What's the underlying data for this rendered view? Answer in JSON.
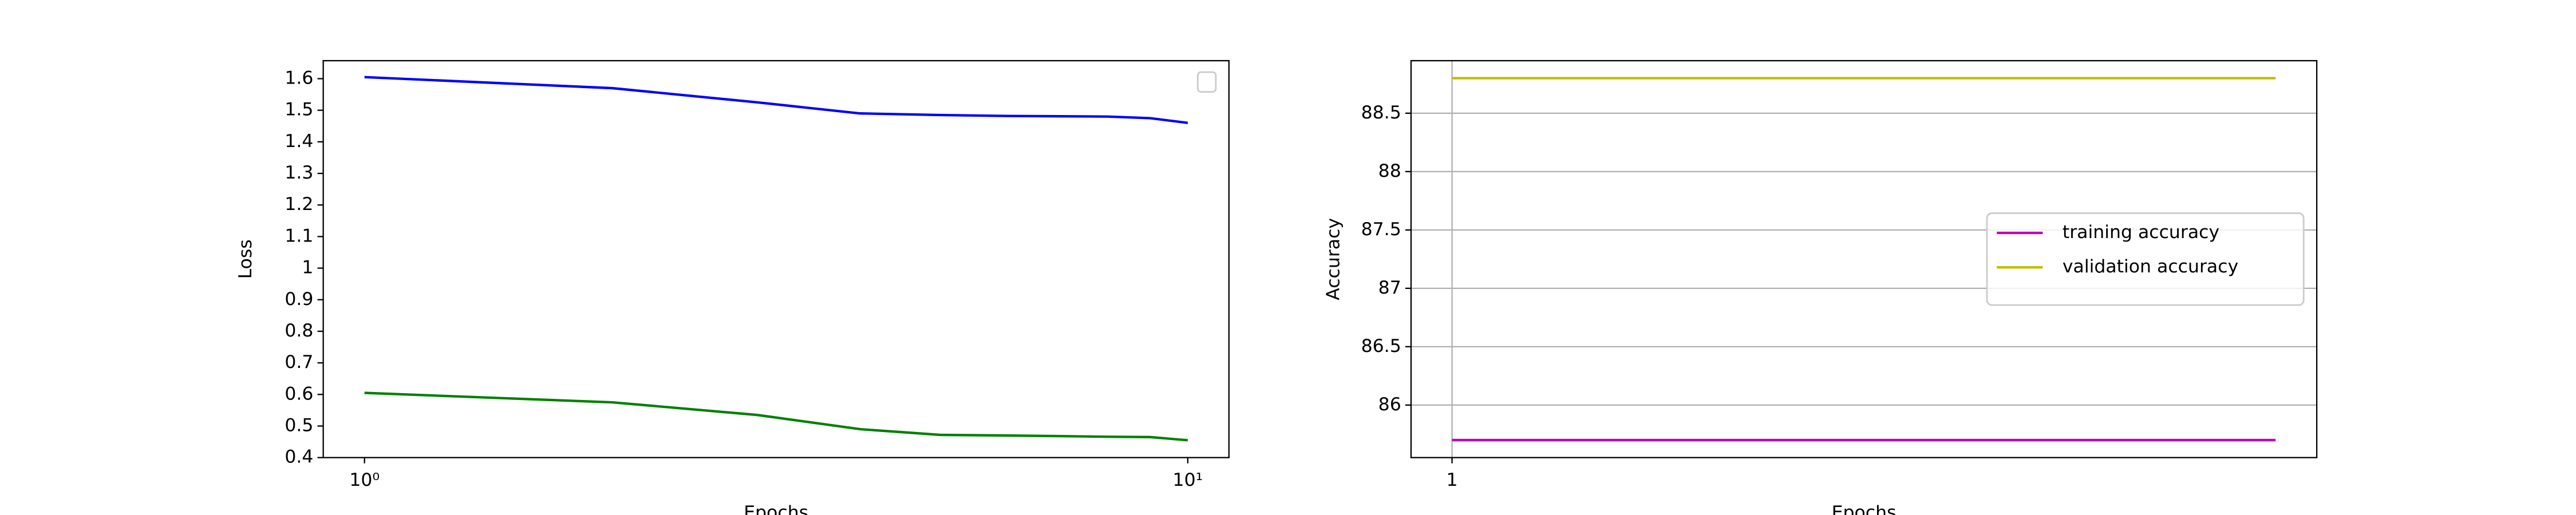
{
  "chart_data": [
    {
      "type": "line",
      "xlabel": "Epochs",
      "ylabel": "Loss",
      "xscale": "log",
      "x": [
        1,
        2,
        3,
        4,
        5,
        6,
        7,
        8,
        9,
        10
      ],
      "series": [
        {
          "color": "#0000ff",
          "values": [
            1.605,
            1.57,
            1.525,
            1.49,
            1.485,
            1.482,
            1.481,
            1.48,
            1.475,
            1.46
          ]
        },
        {
          "color": "#008000",
          "values": [
            0.605,
            0.575,
            0.535,
            0.49,
            0.472,
            0.47,
            0.468,
            0.466,
            0.465,
            0.455
          ]
        }
      ],
      "xlim": [
        0.891,
        11.22
      ],
      "xticks": [
        {
          "value": 1,
          "label": "10⁰"
        },
        {
          "value": 10,
          "label": "10¹"
        }
      ],
      "ylim": [
        0.4,
        1.657
      ],
      "yticks": [
        0.4,
        0.5,
        0.6,
        0.7,
        0.8,
        0.9,
        1.0,
        1.1,
        1.2,
        1.3,
        1.4,
        1.5,
        1.6
      ],
      "grid": false,
      "legend": "upper right"
    },
    {
      "type": "line",
      "xlabel": "Epochs",
      "ylabel": "Accuracy",
      "x": [
        1,
        2,
        3,
        4,
        5,
        6,
        7,
        8,
        9,
        10
      ],
      "series": [
        {
          "name": "training accuracy",
          "color": "#bf00bf",
          "values": [
            85.7,
            85.7,
            85.7,
            85.7,
            85.7,
            85.7,
            85.7,
            85.7,
            85.7,
            85.7
          ]
        },
        {
          "name": "validation accuracy",
          "color": "#bfbf00",
          "values": [
            88.8,
            88.8,
            88.8,
            88.8,
            88.8,
            88.8,
            88.8,
            88.8,
            88.8,
            88.8
          ]
        }
      ],
      "xlim": [
        0.552,
        10.45
      ],
      "xticks": [
        1
      ],
      "ylim": [
        85.55,
        88.95
      ],
      "yticks": [
        86.0,
        86.5,
        87.0,
        87.5,
        88.0,
        88.5
      ],
      "grid": true,
      "legend": "center right"
    }
  ]
}
